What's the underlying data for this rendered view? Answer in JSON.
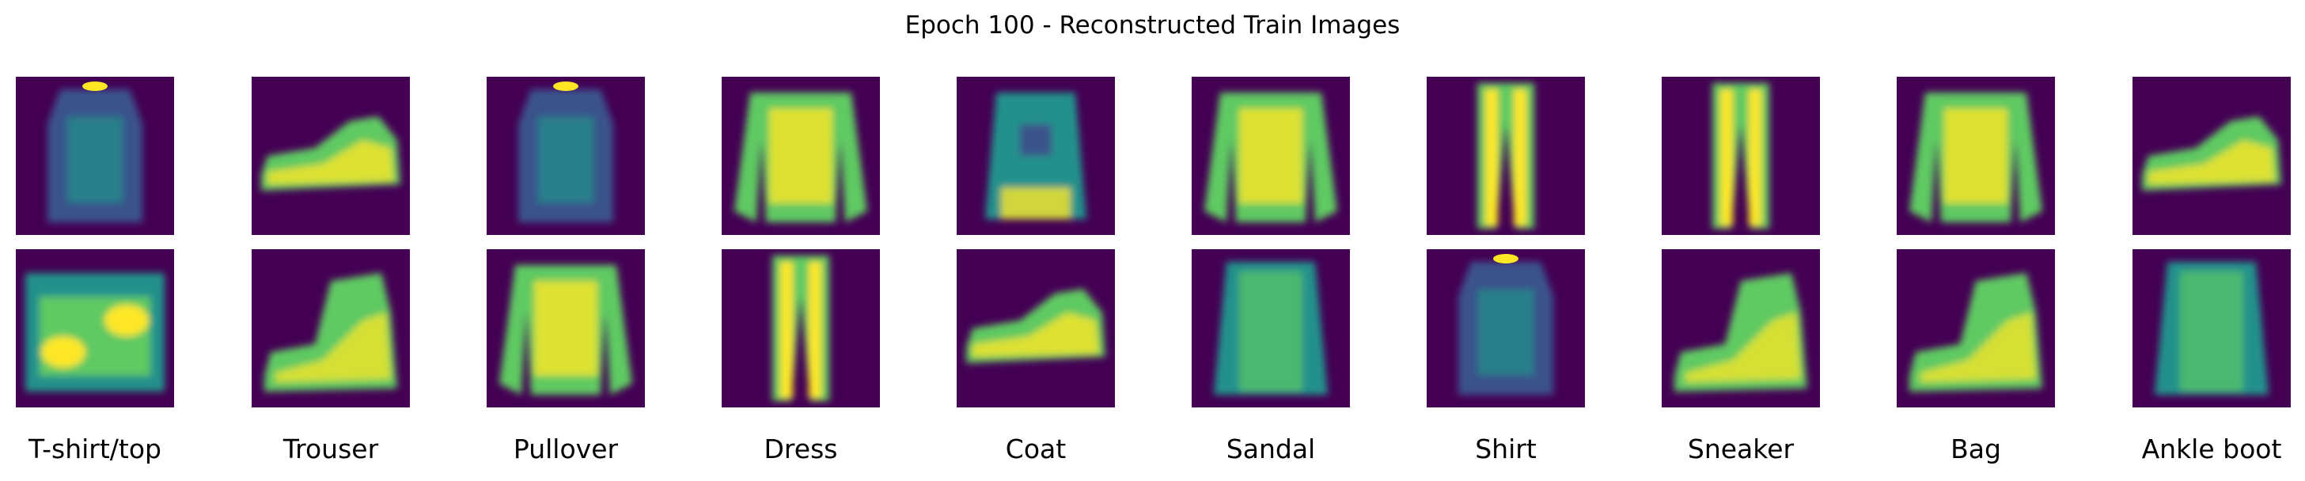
{
  "figure": {
    "title": "Epoch 100 - Reconstructed Train Images",
    "class_labels": [
      "T-shirt/top",
      "Trouser",
      "Pullover",
      "Dress",
      "Coat",
      "Sandal",
      "Shirt",
      "Sneaker",
      "Bag",
      "Ankle boot"
    ],
    "colormap": [
      "#440154",
      "#3b528b",
      "#21918c",
      "#5ec962",
      "#fde725"
    ],
    "rows": [
      [
        "tshirt",
        "shoe",
        "tshirt",
        "pullover",
        "coat",
        "pullover",
        "trouser",
        "trouser",
        "pullover",
        "shoe"
      ],
      [
        "bag",
        "boot",
        "pullover",
        "trouser",
        "shoe",
        "shirt",
        "tshirt",
        "boot",
        "boot",
        "shirt"
      ]
    ]
  }
}
